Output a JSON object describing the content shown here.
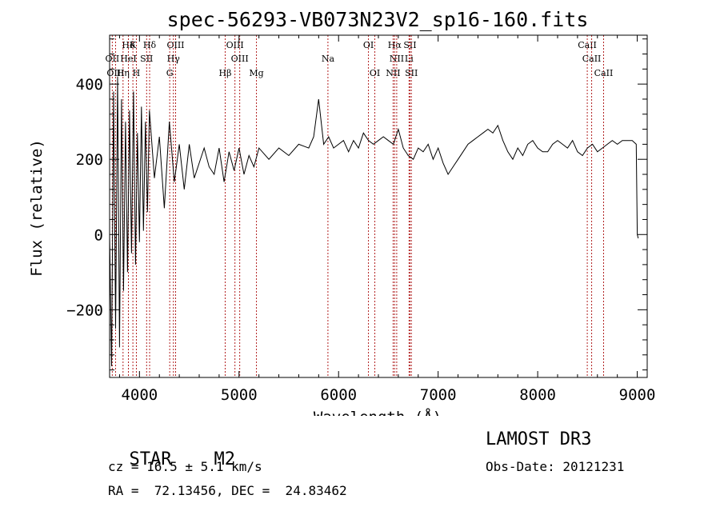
{
  "chart_data": {
    "type": "line",
    "title": "spec-56293-VB073N23V2_sp16-160.fits",
    "xlabel": "Wavelength (Å)",
    "ylabel": "Flux (relative)",
    "xlim": [
      3700,
      9100
    ],
    "ylim": [
      -380,
      530
    ],
    "x_ticks": [
      4000,
      5000,
      6000,
      7000,
      8000,
      9000
    ],
    "x_tick_labels": [
      "4000",
      "5000",
      "6000",
      "7000",
      "8000",
      "9000"
    ],
    "y_ticks": [
      -200,
      0,
      200,
      400
    ],
    "y_tick_labels": [
      "−200",
      "0",
      "200",
      "400"
    ],
    "grid": false,
    "line_color": "#000000",
    "marker_line_color": "#b22222",
    "series": [
      {
        "x": [
          3700,
          3720,
          3740,
          3760,
          3780,
          3800,
          3820,
          3840,
          3860,
          3880,
          3900,
          3920,
          3940,
          3960,
          3980,
          4000,
          4020,
          4040,
          4060,
          4080,
          4100,
          4150,
          4200,
          4250,
          4300,
          4350,
          4400,
          4450,
          4500,
          4550,
          4600,
          4650,
          4700,
          4750,
          4800,
          4850,
          4900,
          4950,
          5000,
          5050,
          5100,
          5150,
          5200,
          5300,
          5400,
          5500,
          5600,
          5700,
          5750,
          5800,
          5850,
          5900,
          5950,
          6000,
          6050,
          6100,
          6150,
          6200,
          6250,
          6300,
          6350,
          6400,
          6450,
          6500,
          6550,
          6600,
          6650,
          6700,
          6750,
          6800,
          6850,
          6900,
          6950,
          7000,
          7050,
          7100,
          7150,
          7200,
          7250,
          7300,
          7350,
          7400,
          7450,
          7500,
          7550,
          7600,
          7650,
          7700,
          7750,
          7800,
          7850,
          7900,
          7950,
          8000,
          8050,
          8100,
          8150,
          8200,
          8250,
          8300,
          8350,
          8400,
          8450,
          8500,
          8550,
          8600,
          8650,
          8700,
          8750,
          8800,
          8850,
          8900,
          8950,
          8990,
          9000,
          9010
        ],
        "y": [
          0,
          -350,
          380,
          -250,
          420,
          -300,
          360,
          -150,
          300,
          -100,
          330,
          -50,
          380,
          -80,
          270,
          -20,
          340,
          10,
          300,
          60,
          330,
          150,
          260,
          70,
          300,
          140,
          240,
          120,
          240,
          150,
          190,
          230,
          180,
          160,
          230,
          140,
          220,
          170,
          230,
          160,
          210,
          180,
          230,
          200,
          230,
          210,
          240,
          230,
          260,
          360,
          240,
          260,
          230,
          240,
          250,
          220,
          250,
          230,
          270,
          250,
          240,
          250,
          260,
          250,
          240,
          280,
          230,
          210,
          200,
          230,
          220,
          240,
          200,
          230,
          190,
          160,
          180,
          200,
          220,
          240,
          250,
          260,
          270,
          280,
          270,
          290,
          250,
          220,
          200,
          230,
          210,
          240,
          250,
          230,
          220,
          220,
          240,
          250,
          240,
          230,
          250,
          220,
          210,
          230,
          240,
          220,
          230,
          240,
          250,
          240,
          250,
          250,
          250,
          240,
          0,
          -10
        ]
      }
    ],
    "line_markers_top": [
      {
        "label": "Hδ",
        "x": 3889
      },
      {
        "label": "K",
        "x": 3934
      },
      {
        "label": "Hδ",
        "x": 4102
      },
      {
        "label": "OIII",
        "x": 4363
      },
      {
        "label": "OIII",
        "x": 4959
      },
      {
        "label": "OI",
        "x": 6300
      },
      {
        "label": "Hα",
        "x": 6563
      },
      {
        "label": "SII",
        "x": 6717
      },
      {
        "label": "CaII",
        "x": 8498
      }
    ],
    "line_markers_mid": [
      {
        "label": "OII",
        "x": 3727
      },
      {
        "label": "HeI",
        "x": 3889
      },
      {
        "label": "SII",
        "x": 4072
      },
      {
        "label": "Hγ",
        "x": 4341
      },
      {
        "label": "OIII",
        "x": 5007
      },
      {
        "label": "Na",
        "x": 5893
      },
      {
        "label": "NII",
        "x": 6584
      },
      {
        "label": "Li",
        "x": 6708
      },
      {
        "label": "CaII",
        "x": 8542
      }
    ],
    "line_markers_low": [
      {
        "label": "OIII",
        "x": 3760
      },
      {
        "label": "Hη",
        "x": 3835
      },
      {
        "label": "H",
        "x": 3969
      },
      {
        "label": "G",
        "x": 4304
      },
      {
        "label": "Hβ",
        "x": 4861
      },
      {
        "label": "Mg",
        "x": 5175
      },
      {
        "label": "OI",
        "x": 6364
      },
      {
        "label": "NII",
        "x": 6548
      },
      {
        "label": "SII",
        "x": 6731
      },
      {
        "label": "CaII",
        "x": 8662
      }
    ]
  },
  "info": {
    "class_label": "STAR",
    "subclass_label": "M2",
    "survey": "LAMOST DR3",
    "cz": "cz = 16.5 ± 5.1 km/s",
    "obs_date": "Obs-Date: 20121231",
    "radec": "RA =  72.13456, DEC =  24.83462"
  }
}
